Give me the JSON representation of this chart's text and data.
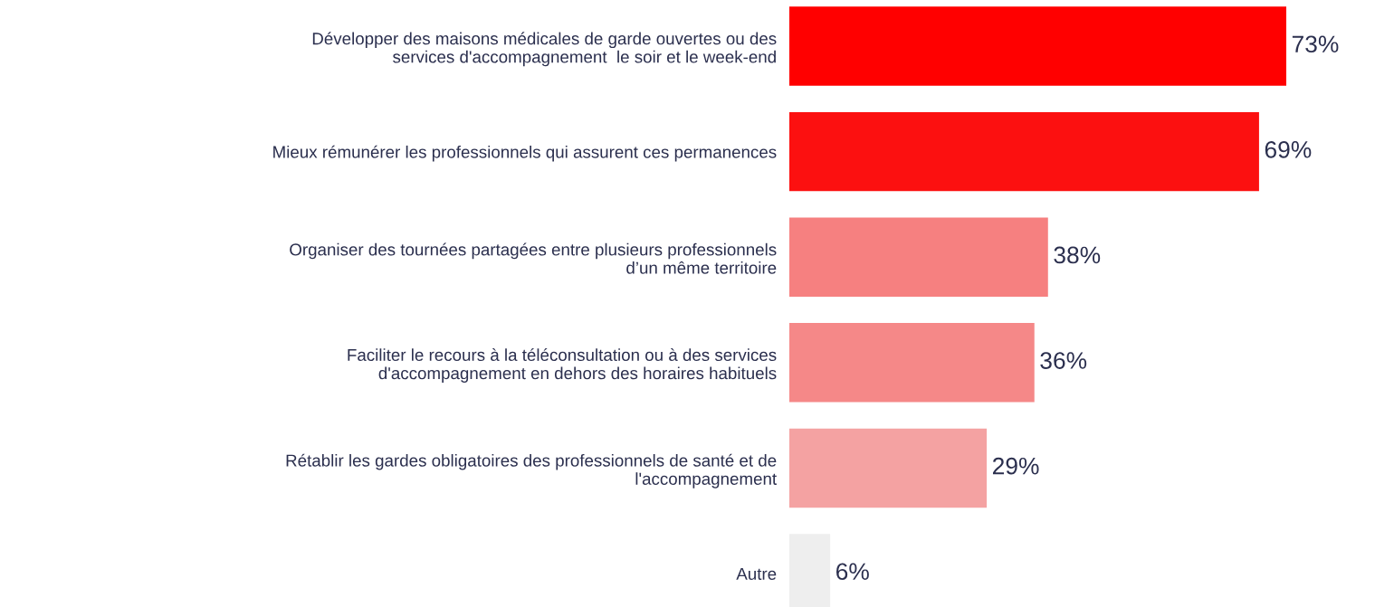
{
  "chart_data": {
    "type": "bar",
    "orientation": "horizontal",
    "categories": [
      "Développer des maisons médicales de garde ouvertes ou des\nservices d'accompagnement  le soir et le week-end",
      "Mieux rémunérer les professionnels qui assurent ces permanences",
      "Organiser des tournées partagées entre plusieurs professionnels\nd’un même territoire",
      "Faciliter le recours à la téléconsultation ou à des services\nd'accompagnement en dehors des horaires habituels",
      "Rétablir les gardes obligatoires des professionnels de santé et de\nl'accompagnement",
      "Autre"
    ],
    "values": [
      73,
      69,
      38,
      36,
      29,
      6
    ],
    "value_labels": [
      "73%",
      "69%",
      "38%",
      "36%",
      "29%",
      "6%"
    ],
    "colors": [
      "#ff0000",
      "#fc1010",
      "#f68080",
      "#f58888",
      "#f4a2a2",
      "#eeeeee"
    ],
    "grid": false,
    "legend": false
  }
}
